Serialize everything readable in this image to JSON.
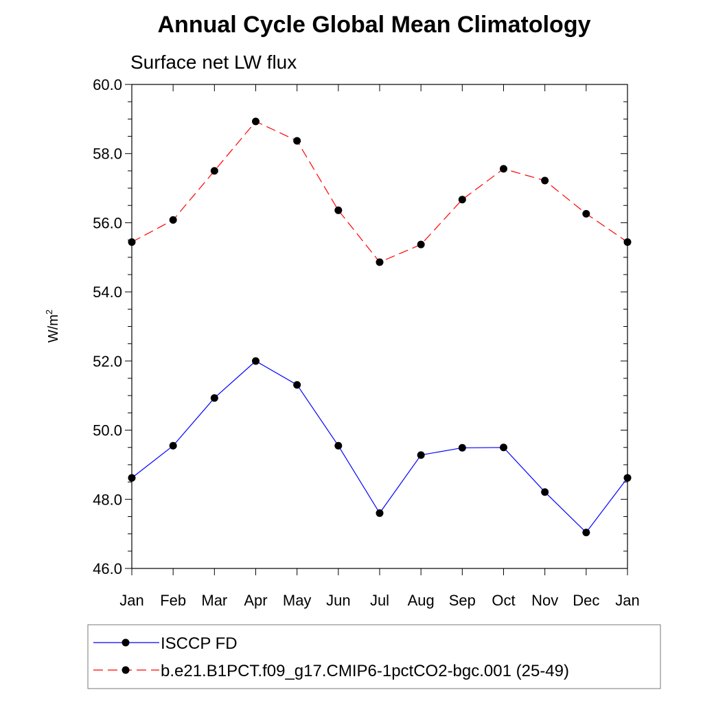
{
  "chart_data": {
    "type": "line",
    "title": "Annual Cycle Global Mean Climatology",
    "subtitle": "Surface net LW flux",
    "ylabel_base": "W/m",
    "ylabel_sup": "2",
    "xlabel": "",
    "categories": [
      "Jan",
      "Feb",
      "Mar",
      "Apr",
      "May",
      "Jun",
      "Jul",
      "Aug",
      "Sep",
      "Oct",
      "Nov",
      "Dec",
      "Jan"
    ],
    "ylim": [
      46.0,
      60.0
    ],
    "yticks": [
      "46.0",
      "48.0",
      "50.0",
      "52.0",
      "54.0",
      "56.0",
      "58.0",
      "60.0"
    ],
    "grid": false,
    "legend_position": "bottom",
    "series": [
      {
        "name": "ISCCP FD",
        "color": "#0000ff",
        "dash": "solid",
        "values": [
          48.62,
          49.55,
          50.93,
          52.0,
          51.31,
          49.55,
          47.6,
          49.28,
          49.49,
          49.5,
          48.21,
          47.04,
          48.62
        ]
      },
      {
        "name": "b.e21.B1PCT.f09_g17.CMIP6-1pctCO2-bgc.001 (25-49)",
        "color": "#ff0000",
        "dash": "dashed",
        "values": [
          55.44,
          56.08,
          57.5,
          58.93,
          58.37,
          56.36,
          54.86,
          55.37,
          56.67,
          57.56,
          57.22,
          56.26,
          55.44
        ]
      }
    ]
  }
}
